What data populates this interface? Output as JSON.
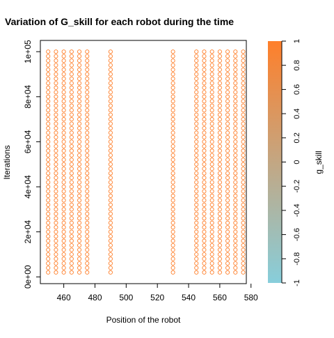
{
  "chart_data": {
    "type": "scatter",
    "title": "Variation of G_skill for each robot during the time",
    "xlabel": "Position of the robot",
    "ylabel": "Iterations",
    "xlim": [
      445,
      577
    ],
    "ylim": [
      -3000,
      105000
    ],
    "x_ticks": [
      460,
      480,
      500,
      520,
      540,
      560,
      580
    ],
    "x_tick_labels": [
      "460",
      "480",
      "500",
      "520",
      "540",
      "560",
      "580"
    ],
    "y_ticks": [
      0,
      20000,
      40000,
      60000,
      80000,
      100000
    ],
    "y_tick_labels": [
      "0e+00",
      "2e+04",
      "4e+04",
      "6e+04",
      "8e+04",
      "1e+05"
    ],
    "robot_positions": [
      450,
      455,
      460,
      465,
      470,
      475,
      490,
      530,
      545,
      550,
      555,
      560,
      565,
      570,
      575
    ],
    "iteration_range": [
      2000,
      100000
    ],
    "point_color": "#FF7F2A",
    "colorbar": {
      "label": "g_skill",
      "range": [
        -1,
        1
      ],
      "ticks": [
        -1,
        -0.8,
        -0.6,
        -0.4,
        -0.2,
        0,
        0.2,
        0.4,
        0.6,
        0.8,
        1
      ],
      "tick_labels": [
        "-1",
        "-0.8",
        "-0.6",
        "-0.4",
        "-0.2",
        "0",
        "0.2",
        "0.4",
        "0.6",
        "0.8",
        "1"
      ],
      "color_low": "#87CEDB",
      "color_high": "#FF7F2A"
    },
    "marker": "open-circle",
    "grid": false,
    "legend": "colorbar-right"
  }
}
